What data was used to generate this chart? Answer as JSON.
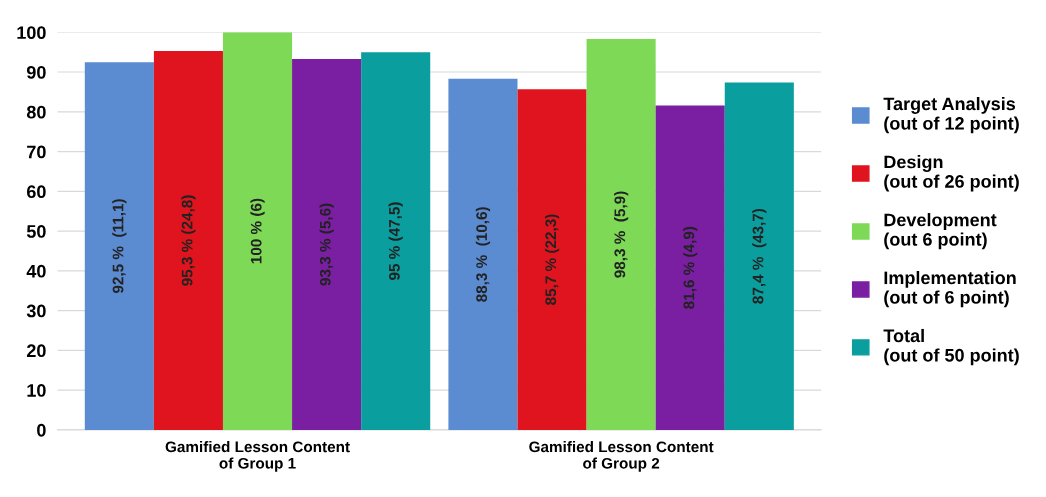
{
  "chart_data": {
    "type": "bar",
    "categories": [
      "Gamified Lesson Content\nof Group 1",
      "Gamified Lesson Content\nof Group 2"
    ],
    "series": [
      {
        "name": "Target Analysis\n(out of 12 point)",
        "color": "#5b8bd0",
        "values": [
          92.5,
          88.3
        ],
        "value_labels": [
          "92,5 %  (11,1)",
          "88,3 %  (10,6)"
        ]
      },
      {
        "name": "Design\n(out of 26 point)",
        "color": "#e0141e",
        "values": [
          95.3,
          85.7
        ],
        "value_labels": [
          "95,3 % (24,8)",
          "85,7 % (22,3)"
        ]
      },
      {
        "name": "Development\n(out 6 point)",
        "color": "#7ed957",
        "values": [
          100,
          98.3
        ],
        "value_labels": [
          "100 % (6)",
          "98,3 %  (5,9)"
        ]
      },
      {
        "name": "Implementation\n(out of 6 point)",
        "color": "#7b1fa2",
        "values": [
          93.3,
          81.6
        ],
        "value_labels": [
          "93,3 % (5,6)",
          "81,6 % (4,9)"
        ]
      },
      {
        "name": "Total\n(out of 50 point)",
        "color": "#0a9e9e",
        "values": [
          95,
          87.4
        ],
        "value_labels": [
          "95 % (47,5)",
          "87,4 %  (43,7)"
        ]
      }
    ],
    "ylim": [
      0,
      100
    ],
    "yticks": [
      0,
      10,
      20,
      30,
      40,
      50,
      60,
      70,
      80,
      90,
      100
    ],
    "grid": "y",
    "legend": "right"
  }
}
